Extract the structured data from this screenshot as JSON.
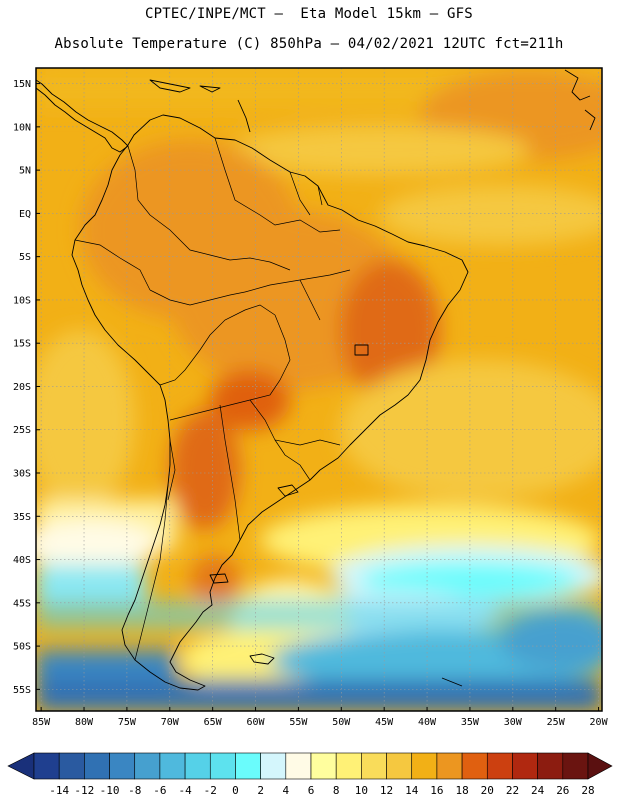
{
  "header": {
    "line1": "CPTEC/INPE/MCT –  Eta Model 15km – GFS",
    "line2": "Absolute Temperature (C) 850hPa – 04/02/2021 12UTC fct=211h"
  },
  "map": {
    "lat_labels": [
      "15N",
      "10N",
      "5N",
      "EQ",
      "5S",
      "10S",
      "15S",
      "20S",
      "25S",
      "30S",
      "35S",
      "40S",
      "45S",
      "50S",
      "55S"
    ],
    "lon_labels": [
      "85W",
      "80W",
      "75W",
      "70W",
      "65W",
      "60W",
      "55W",
      "50W",
      "45W",
      "40W",
      "35W",
      "30W",
      "25W",
      "20W"
    ],
    "lat_values": [
      15,
      10,
      5,
      0,
      -5,
      -10,
      -15,
      -20,
      -25,
      -30,
      -35,
      -40,
      -45,
      -50,
      -55
    ],
    "lon_values": [
      -85,
      -80,
      -75,
      -70,
      -65,
      -60,
      -55,
      -50,
      -45,
      -40,
      -35,
      -30,
      -25,
      -20
    ],
    "extent": {
      "lon_min": -85.6,
      "lon_max": -19.6,
      "lat_min": -57.5,
      "lat_max": 16.8
    }
  },
  "colorbar": {
    "labels": [
      "-14",
      "-12",
      "-10",
      "-8",
      "-6",
      "-4",
      "-2",
      "0",
      "2",
      "4",
      "6",
      "8",
      "10",
      "12",
      "14",
      "16",
      "18",
      "20",
      "22",
      "24",
      "26",
      "28"
    ],
    "colors": [
      "#1f3f8f",
      "#2a5aa0",
      "#3071b3",
      "#3a86c2",
      "#46a0cf",
      "#4fb9dd",
      "#55d1e8",
      "#5de2ee",
      "#6afcfc",
      "#d4f6fc",
      "#fffbe6",
      "#fffe9e",
      "#fff176",
      "#f9dc5a",
      "#f5c840",
      "#f2b016",
      "#ec9620",
      "#e06010",
      "#cc4010",
      "#b02810",
      "#8c1c10",
      "#6a1410"
    ],
    "under_color": "#19307a",
    "over_color": "#5a1010"
  }
}
